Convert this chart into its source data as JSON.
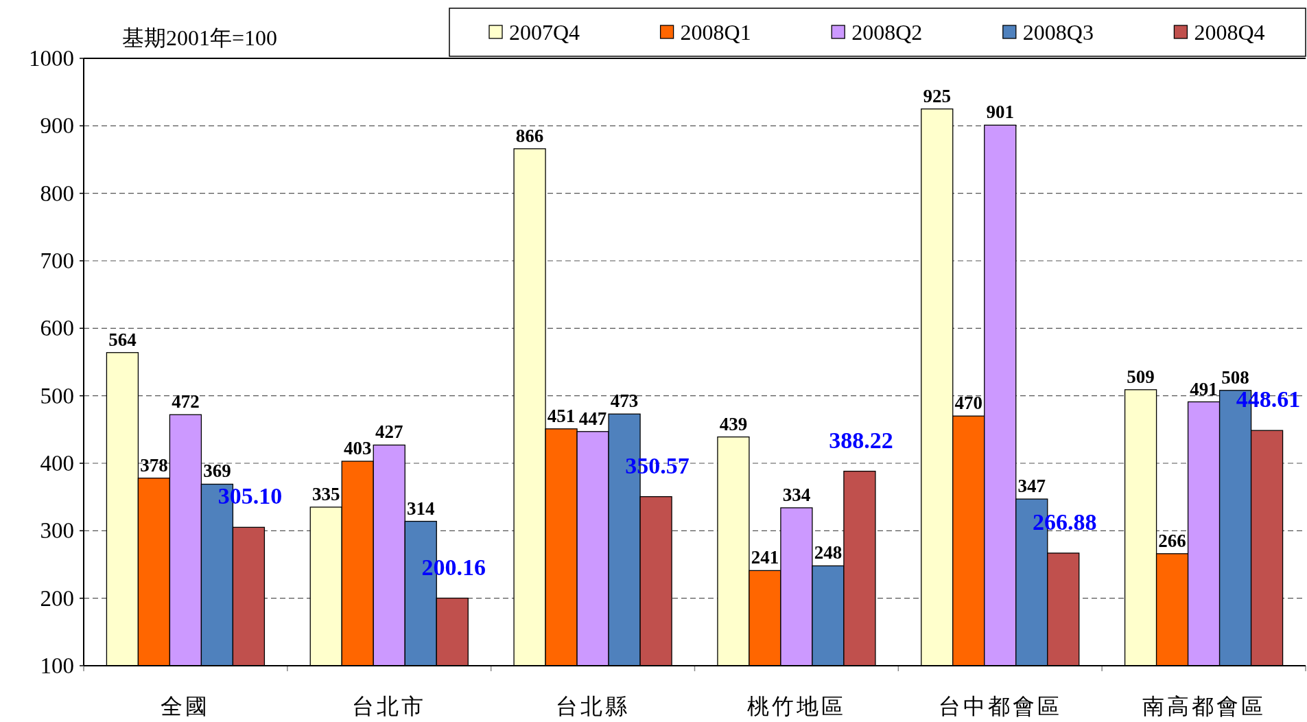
{
  "chart_data": {
    "type": "bar",
    "categories": [
      "全國",
      "台北市",
      "台北縣",
      "桃竹地區",
      "台中都會區",
      "南高都會區"
    ],
    "series": [
      {
        "name": "2007Q4",
        "color": "#ffffcc",
        "values": [
          564,
          335,
          866,
          439,
          925,
          509
        ],
        "value_labels": [
          "564",
          "335",
          "866",
          "439",
          "925",
          "509"
        ]
      },
      {
        "name": "2008Q1",
        "color": "#ff6600",
        "values": [
          378,
          403,
          451,
          241,
          470,
          266
        ],
        "value_labels": [
          "378",
          "403",
          "451",
          "241",
          "470",
          "266"
        ]
      },
      {
        "name": "2008Q2",
        "color": "#cc99ff",
        "values": [
          472,
          427,
          447,
          334,
          901,
          491
        ],
        "value_labels": [
          "472",
          "427",
          "447",
          "334",
          "901",
          "491"
        ]
      },
      {
        "name": "2008Q3",
        "color": "#4f81bd",
        "values": [
          369,
          314,
          473,
          248,
          347,
          508
        ],
        "value_labels": [
          "369",
          "314",
          "473",
          "248",
          "347",
          "508"
        ]
      },
      {
        "name": "2008Q4",
        "color": "#c0504d",
        "values": [
          305.1,
          200.16,
          350.57,
          388.22,
          266.88,
          448.61
        ],
        "value_labels": [
          "305.10",
          "200.16",
          "350.57",
          "388.22",
          "266.88",
          "448.61"
        ]
      }
    ],
    "ylim": [
      100,
      1000
    ],
    "yticks": [
      100,
      200,
      300,
      400,
      500,
      600,
      700,
      800,
      900,
      1000
    ],
    "grid": "y",
    "legend": "top",
    "line_style": "dashed",
    "annotations": [
      "基期2001年=100"
    ]
  }
}
